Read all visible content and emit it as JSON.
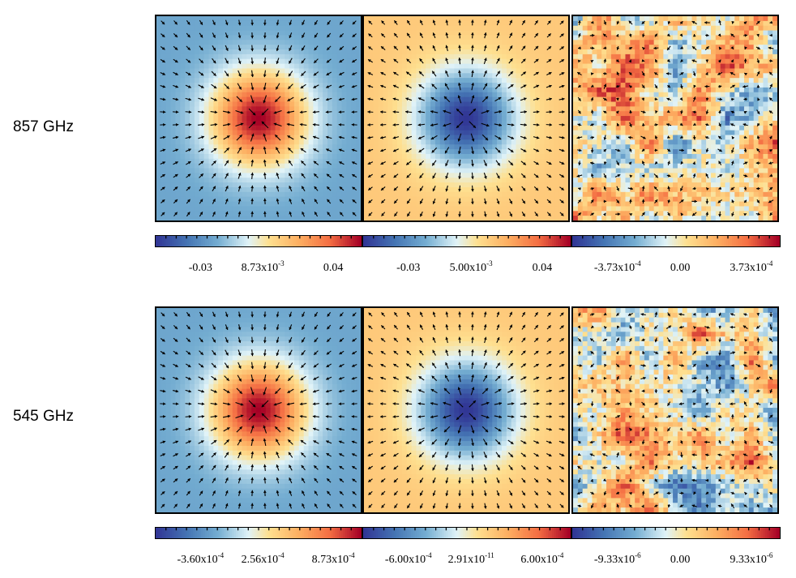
{
  "rows": [
    {
      "label": "857 GHz",
      "panels": [
        {
          "colorbar": {
            "ticks": [
              {
                "base": "-0.03"
              },
              {
                "base": "8.73x10",
                "exp": "-3"
              },
              {
                "base": "0.04"
              }
            ]
          }
        },
        {
          "colorbar": {
            "ticks": [
              {
                "base": "-0.03"
              },
              {
                "base": "5.00x10",
                "exp": "-3"
              },
              {
                "base": "0.04"
              }
            ]
          }
        },
        {
          "colorbar": {
            "ticks": [
              {
                "base": "-3.73x10",
                "exp": "-4"
              },
              {
                "base": "0.00"
              },
              {
                "base": "3.73x10",
                "exp": "-4"
              }
            ]
          }
        }
      ]
    },
    {
      "label": "545 GHz",
      "panels": [
        {
          "colorbar": {
            "ticks": [
              {
                "base": "-3.60x10",
                "exp": "-4"
              },
              {
                "base": "2.56x10",
                "exp": "-4"
              },
              {
                "base": "8.73x10",
                "exp": "-4"
              }
            ]
          }
        },
        {
          "colorbar": {
            "ticks": [
              {
                "base": "-6.00x10",
                "exp": "-4"
              },
              {
                "base": "2.91x10",
                "exp": "-11"
              },
              {
                "base": "6.00x10",
                "exp": "-4"
              }
            ]
          }
        },
        {
          "colorbar": {
            "ticks": [
              {
                "base": "-9.33x10",
                "exp": "-6"
              },
              {
                "base": "0.00"
              },
              {
                "base": "9.33x10",
                "exp": "-6"
              }
            ]
          }
        }
      ]
    }
  ],
  "chart_data": [
    {
      "type": "heatmap",
      "row": "857 GHz",
      "panel": 1,
      "pattern": "central-peak",
      "vectors": "radial-inward",
      "colorbar": {
        "min": -0.03,
        "center": 0.00873,
        "max": 0.04
      },
      "colormap": "blue-white-yellow-red"
    },
    {
      "type": "heatmap",
      "row": "857 GHz",
      "panel": 2,
      "pattern": "central-trough",
      "vectors": "radial-outward",
      "colorbar": {
        "min": -0.03,
        "center": 0.005,
        "max": 0.04
      },
      "colormap": "blue-white-yellow-red"
    },
    {
      "type": "heatmap",
      "row": "857 GHz",
      "panel": 3,
      "pattern": "noise",
      "vectors": "random-small",
      "colorbar": {
        "min": -0.000373,
        "center": 0.0,
        "max": 0.000373
      },
      "colormap": "blue-white-yellow-red"
    },
    {
      "type": "heatmap",
      "row": "545 GHz",
      "panel": 1,
      "pattern": "central-peak",
      "vectors": "radial-inward",
      "colorbar": {
        "min": -0.00036,
        "center": 0.000256,
        "max": 0.000873
      },
      "colormap": "blue-white-yellow-red"
    },
    {
      "type": "heatmap",
      "row": "545 GHz",
      "panel": 2,
      "pattern": "central-trough",
      "vectors": "radial-outward",
      "colorbar": {
        "min": -0.0006,
        "center": 2.91e-11,
        "max": 0.0006
      },
      "colormap": "blue-white-yellow-red"
    },
    {
      "type": "heatmap",
      "row": "545 GHz",
      "panel": 3,
      "pattern": "noise",
      "vectors": "random-small",
      "colorbar": {
        "min": -9.33e-06,
        "center": 0.0,
        "max": 9.33e-06
      },
      "colormap": "blue-white-yellow-red"
    }
  ]
}
